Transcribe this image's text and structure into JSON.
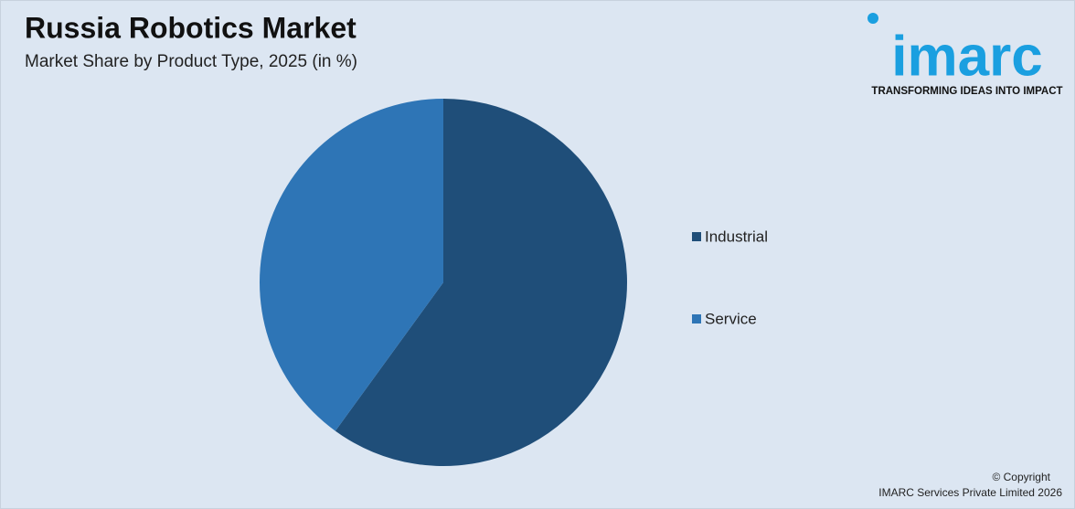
{
  "chart_data": {
    "type": "pie",
    "title": "Russia Robotics Market",
    "subtitle": "Market Share by Product Type, 2025 (in %)",
    "categories": [
      "Industrial",
      "Service"
    ],
    "values": [
      60,
      40
    ],
    "colors": [
      "#1f4e79",
      "#2e75b6"
    ],
    "legend": "right"
  },
  "brand": {
    "name": "imarc",
    "tagline": "TRANSFORMING IDEAS INTO IMPACT"
  },
  "copyright": [
    "© Copyright",
    "IMARC Services Private Limited 2026"
  ]
}
